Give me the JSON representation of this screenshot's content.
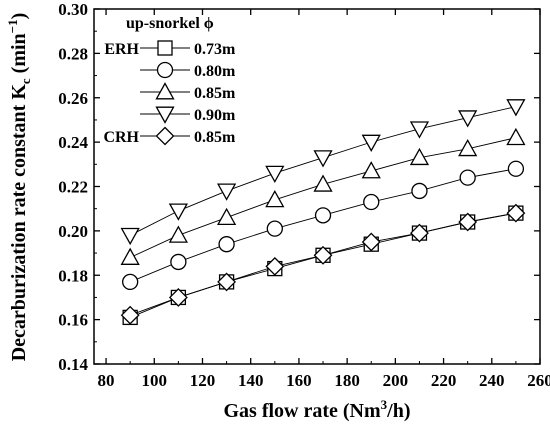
{
  "chart_data": {
    "type": "line",
    "title": "",
    "xlabel": "Gas flow rate (Nm",
    "xlabel_sup": "3",
    "xlabel_end": "/h)",
    "ylabel": "Decarburization rate constant K",
    "ylabel_sub": "c",
    "ylabel_unit": " (min",
    "ylabel_sup": "−1",
    "ylabel_end": ")",
    "xlim": [
      75,
      260
    ],
    "ylim": [
      0.14,
      0.3
    ],
    "xticks": [
      80,
      100,
      120,
      140,
      160,
      180,
      200,
      220,
      240,
      260
    ],
    "yticks": [
      "0.14",
      "0.16",
      "0.18",
      "0.20",
      "0.22",
      "0.24",
      "0.26",
      "0.28",
      "0.30"
    ],
    "grid": false,
    "legend_placement": "top-left",
    "legend_title": "up-snorkel ϕ",
    "series": [
      {
        "name": "0.73m",
        "group": "ERH",
        "marker": "square",
        "x": [
          90,
          110,
          130,
          150,
          170,
          190,
          210,
          230,
          250
        ],
        "y": [
          0.161,
          0.17,
          0.177,
          0.183,
          0.189,
          0.194,
          0.199,
          0.204,
          0.208
        ]
      },
      {
        "name": "0.80m",
        "group": "",
        "marker": "circle",
        "x": [
          90,
          110,
          130,
          150,
          170,
          190,
          210,
          230,
          250
        ],
        "y": [
          0.177,
          0.186,
          0.194,
          0.201,
          0.207,
          0.213,
          0.218,
          0.224,
          0.228
        ]
      },
      {
        "name": "0.85m",
        "group": "",
        "marker": "triangle-up",
        "x": [
          90,
          110,
          130,
          150,
          170,
          190,
          210,
          230,
          250
        ],
        "y": [
          0.188,
          0.198,
          0.206,
          0.214,
          0.221,
          0.227,
          0.233,
          0.237,
          0.242
        ]
      },
      {
        "name": "0.90m",
        "group": "",
        "marker": "triangle-down",
        "x": [
          90,
          110,
          130,
          150,
          170,
          190,
          210,
          230,
          250
        ],
        "y": [
          0.198,
          0.209,
          0.218,
          0.226,
          0.233,
          0.24,
          0.246,
          0.251,
          0.256
        ]
      },
      {
        "name": "0.85m",
        "group": "CRH",
        "marker": "diamond",
        "x": [
          90,
          110,
          130,
          150,
          170,
          190,
          210,
          230,
          250
        ],
        "y": [
          0.162,
          0.17,
          0.177,
          0.184,
          0.189,
          0.195,
          0.199,
          0.204,
          0.208
        ]
      }
    ]
  }
}
